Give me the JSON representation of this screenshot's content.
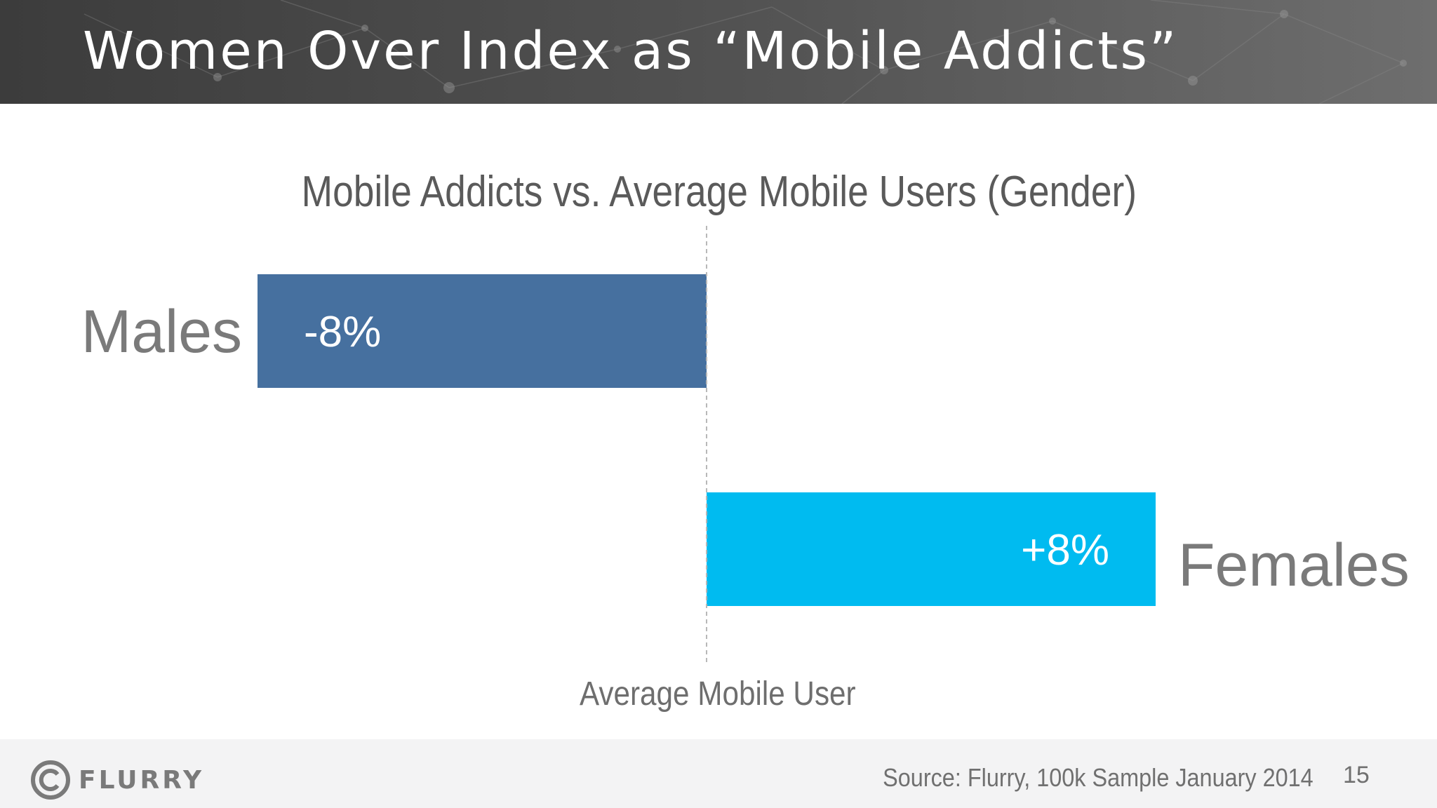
{
  "slide": {
    "title": "Women Over Index as “Mobile Addicts”",
    "source": "Source: Flurry, 100k Sample January 2014",
    "page_number": "15",
    "logo_text": "FLURRY"
  },
  "chart_data": {
    "type": "bar",
    "orientation": "horizontal-diverging",
    "title": "Mobile Addicts vs. Average Mobile Users (Gender)",
    "baseline_label": "Average Mobile User",
    "categories": [
      "Males",
      "Females"
    ],
    "values": [
      -8,
      8
    ],
    "value_labels": [
      "-8%",
      "+8%"
    ],
    "unit": "%",
    "xlim": [
      -10,
      10
    ],
    "grid": false,
    "colors": [
      "#46709f",
      "#00bbf0"
    ],
    "baseline_color": "#b8b8b8"
  }
}
